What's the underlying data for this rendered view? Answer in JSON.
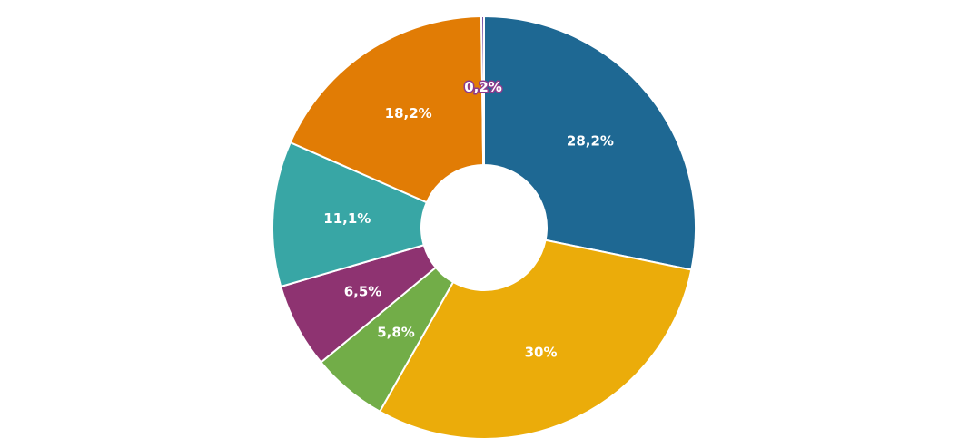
{
  "chart_data": {
    "type": "pie",
    "donut": true,
    "categories": [
      "",
      "",
      "",
      "",
      "",
      "",
      ""
    ],
    "values": [
      28.2,
      30,
      5.8,
      6.5,
      11.1,
      18.2,
      0.2
    ],
    "labels": [
      "28,2%",
      "30%",
      "5,8%",
      "6,5%",
      "11,1%",
      "18,2%",
      "0,2%"
    ],
    "colors": [
      "#1e6893",
      "#ebac0a",
      "#72ad48",
      "#8e3371",
      "#38a6a5",
      "#e17c05",
      "#6a3d9a"
    ],
    "title": "",
    "legend": "none"
  }
}
